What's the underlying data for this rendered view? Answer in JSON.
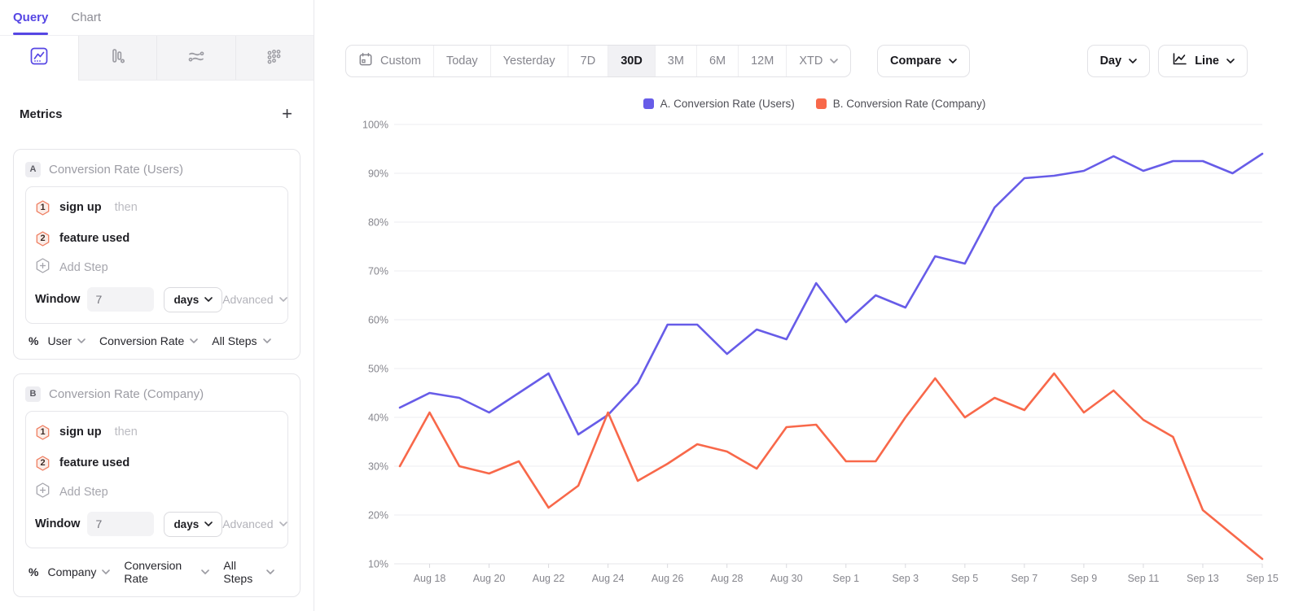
{
  "left_panel": {
    "tabs": [
      {
        "label": "Query",
        "active": true
      },
      {
        "label": "Chart",
        "active": false
      }
    ],
    "chart_type_icons": [
      "line-chart",
      "bar-chart",
      "flow",
      "dot-grid"
    ],
    "metrics": {
      "title": "Metrics",
      "add_label": "+",
      "cards": [
        {
          "badge": "A",
          "title": "Conversion Rate (Users)",
          "steps": [
            {
              "num": "1",
              "event": "sign up",
              "suffix": "then"
            },
            {
              "num": "2",
              "event": "feature used",
              "suffix": ""
            }
          ],
          "add_step_label": "Add Step",
          "window": {
            "label": "Window",
            "value": "7",
            "unit": "days",
            "advanced_label": "Advanced"
          },
          "breakdown": {
            "prefix": "%",
            "entity": "User",
            "measure": "Conversion Rate",
            "steps_scope": "All Steps"
          }
        },
        {
          "badge": "B",
          "title": "Conversion Rate (Company)",
          "steps": [
            {
              "num": "1",
              "event": "sign up",
              "suffix": "then"
            },
            {
              "num": "2",
              "event": "feature used",
              "suffix": ""
            }
          ],
          "add_step_label": "Add Step",
          "window": {
            "label": "Window",
            "value": "7",
            "unit": "days",
            "advanced_label": "Advanced"
          },
          "breakdown": {
            "prefix": "%",
            "entity": "Company",
            "measure": "Conversion Rate",
            "steps_scope": "All Steps"
          }
        }
      ]
    }
  },
  "toolbar": {
    "date_ranges": [
      {
        "label": "Custom",
        "icon": "calendar"
      },
      {
        "label": "Today"
      },
      {
        "label": "Yesterday"
      },
      {
        "label": "7D"
      },
      {
        "label": "30D",
        "active": true
      },
      {
        "label": "3M"
      },
      {
        "label": "6M"
      },
      {
        "label": "12M"
      },
      {
        "label": "XTD",
        "dropdown": true
      }
    ],
    "compare_label": "Compare",
    "interval_label": "Day",
    "chart_type_label": "Line"
  },
  "legend": [
    {
      "label": "A. Conversion Rate (Users)",
      "color": "#675CE8"
    },
    {
      "label": "B. Conversion Rate (Company)",
      "color": "#F8684A"
    }
  ],
  "chart_data": {
    "type": "line",
    "x": [
      "Aug 17",
      "Aug 18",
      "Aug 19",
      "Aug 20",
      "Aug 21",
      "Aug 22",
      "Aug 23",
      "Aug 24",
      "Aug 25",
      "Aug 26",
      "Aug 27",
      "Aug 28",
      "Aug 29",
      "Aug 30",
      "Aug 31",
      "Sep 1",
      "Sep 2",
      "Sep 3",
      "Sep 4",
      "Sep 5",
      "Sep 6",
      "Sep 7",
      "Sep 8",
      "Sep 9",
      "Sep 10",
      "Sep 11",
      "Sep 12",
      "Sep 13",
      "Sep 14",
      "Sep 15"
    ],
    "x_tick_labels": [
      "Aug 18",
      "Aug 20",
      "Aug 22",
      "Aug 24",
      "Aug 26",
      "Aug 28",
      "Aug 30",
      "Sep 1",
      "Sep 3",
      "Sep 5",
      "Sep 7",
      "Sep 9",
      "Sep 11",
      "Sep 13",
      "Sep 15"
    ],
    "series": [
      {
        "name": "A. Conversion Rate (Users)",
        "color": "#675CE8",
        "values": [
          42,
          45,
          44,
          41,
          45,
          49,
          36.5,
          40.5,
          47,
          59,
          59,
          53,
          58,
          56,
          67.5,
          59.5,
          65,
          62.5,
          73,
          71.5,
          83,
          89,
          89.5,
          90.5,
          93.5,
          90.5,
          92.5,
          92.5,
          90,
          94
        ]
      },
      {
        "name": "B. Conversion Rate (Company)",
        "color": "#F8684A",
        "values": [
          30,
          41,
          30,
          28.5,
          31,
          21.5,
          26,
          41,
          27,
          30.5,
          34.5,
          33,
          29.5,
          38,
          38.5,
          31,
          31,
          40,
          48,
          40,
          44,
          41.5,
          49,
          41,
          45.5,
          39.5,
          36,
          21,
          16,
          11
        ]
      }
    ],
    "ylim": [
      10,
      100
    ],
    "ytick_step": 10,
    "ytick_suffix": "%",
    "grid": "horizontal",
    "legend_position": "top-center"
  },
  "colors": {
    "accent_purple": "#5646E4",
    "series_a": "#675CE8",
    "series_b": "#F8684A",
    "step_badge_stroke": "#EF7E61",
    "step_badge_fill": "#FBEDE8"
  }
}
